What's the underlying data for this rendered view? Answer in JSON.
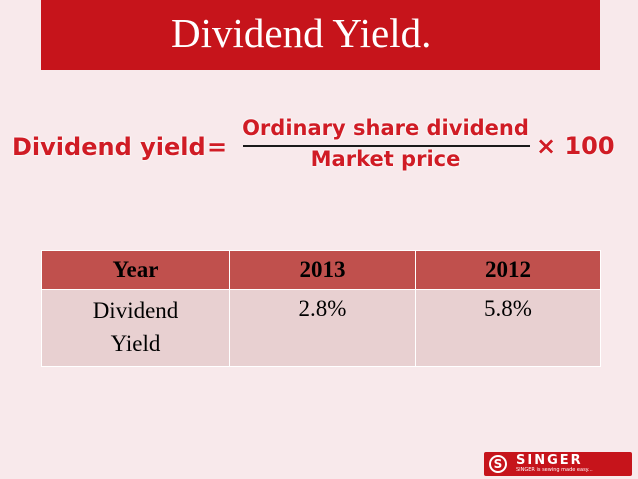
{
  "slide": {
    "title": "Dividend Yield."
  },
  "formula": {
    "lhs": "Dividend yield",
    "equals": "=",
    "numerator": "Ordinary share dividend",
    "denominator": "Market price",
    "multiplier": "× 100"
  },
  "table": {
    "headers": [
      "Year",
      "2013",
      "2012"
    ],
    "rows": [
      {
        "label_line1": "Dividend",
        "label_line2": "Yield",
        "v2013": "2.8%",
        "v2012": "5.8%"
      }
    ]
  },
  "logo": {
    "brand": "SINGER",
    "symbol": "S",
    "tagline": "SINGER is sewing made easy..."
  },
  "colors": {
    "title_bg": "#c6141b",
    "header_bg": "#c0504d",
    "cell_bg": "#e8d0d1",
    "page_bg": "#f8e9eb",
    "formula_text": "#d01c25"
  }
}
